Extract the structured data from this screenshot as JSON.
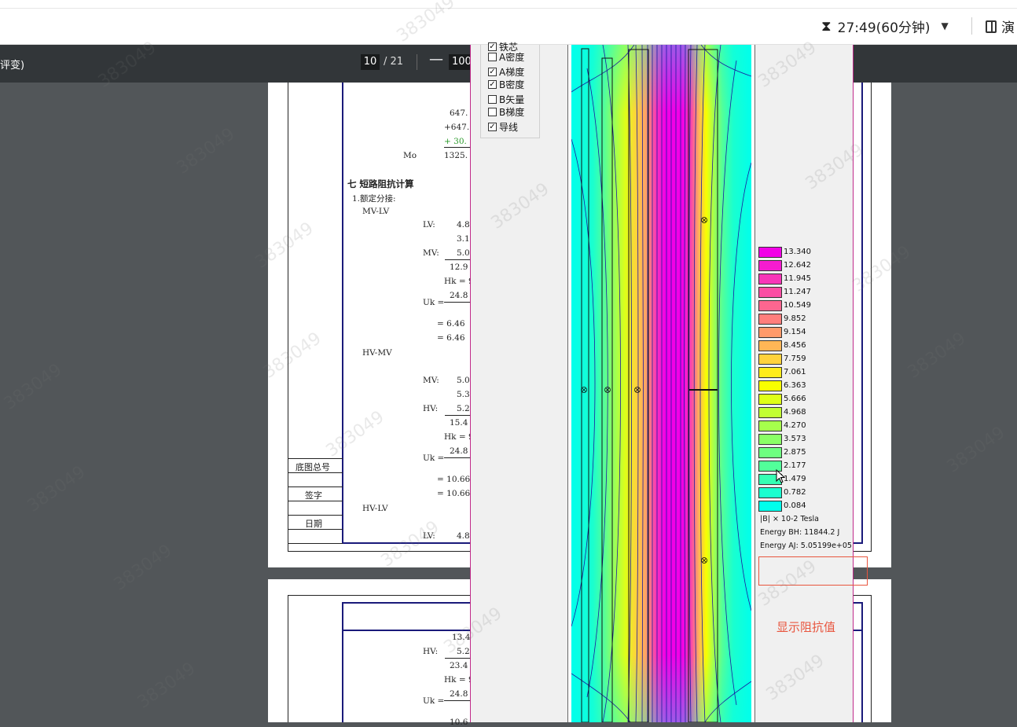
{
  "header": {
    "timer": "27:49(60分钟)",
    "present_label": "演"
  },
  "pdf_toolbar": {
    "doc_title_fragment": "评变)",
    "page_current": "10",
    "page_total": "/ 21",
    "zoom_minus": "—",
    "zoom_value": "100"
  },
  "page1": {
    "calc": {
      "l1": "647.",
      "l2": "+647.",
      "l3": "+ 30.",
      "mo_label": "Mo",
      "mo_value": "1325."
    },
    "section_title": "七 短路阻抗计算",
    "rated_tap": "1.额定分接:",
    "mvlv": {
      "heading": "MV-LV",
      "lv_label": "LV:",
      "lv_v1": "4.8",
      "lv_v2": "3.1",
      "mv_label": "MV:",
      "mv_v": "5.0",
      "sum": "12.9",
      "hk": "Hk = 9",
      "uk_label": "Uk =",
      "uk_num": "24.8",
      "r1": "= 6.46",
      "r2": "= 6.46"
    },
    "hvmv": {
      "heading": "HV-MV",
      "mv_label": "MV:",
      "mv_v1": "5.0",
      "mv_v2": "5.3",
      "hv_label": "HV:",
      "hv_v": "5.2",
      "sum": "15.4",
      "hk": "Hk = 9",
      "uk_label": "Uk =",
      "uk_num": "24.8",
      "r1": "= 10.66",
      "r2": "= 10.66"
    },
    "hvlv": {
      "heading": "HV-LV",
      "lv_label": "LV:",
      "lv_v": "4.8"
    },
    "title_block": {
      "base_no": "底图总号",
      "sign": "签字",
      "date": "日期"
    }
  },
  "page2": {
    "v1": "13.4",
    "hv_label": "HV:",
    "hv_v": "5.2",
    "sum": "23.4",
    "hk": "Hk = 9",
    "uk_label": "Uk =",
    "uk_num": "24.8",
    "tail": "10.6"
  },
  "sim": {
    "checkboxes": [
      {
        "label": "铁芯",
        "checked": true
      },
      {
        "label": "A密度",
        "checked": false
      },
      {
        "label": "A梯度",
        "checked": true
      },
      {
        "label": "B密度",
        "checked": true
      },
      {
        "label": "B矢量",
        "checked": false
      },
      {
        "label": "B梯度",
        "checked": false
      },
      {
        "label": "导线",
        "checked": true
      }
    ],
    "legend": [
      {
        "value": "13.340",
        "color": "#f200e6"
      },
      {
        "value": "12.642",
        "color": "#f51cd0"
      },
      {
        "value": "11.945",
        "color": "#f836b8"
      },
      {
        "value": "11.247",
        "color": "#fb4ea4"
      },
      {
        "value": "10.549",
        "color": "#fd6690"
      },
      {
        "value": "9.852",
        "color": "#ff7e7c"
      },
      {
        "value": "9.154",
        "color": "#ff9a6a"
      },
      {
        "value": "8.456",
        "color": "#ffb656"
      },
      {
        "value": "7.759",
        "color": "#ffd23c"
      },
      {
        "value": "7.061",
        "color": "#ffec1a"
      },
      {
        "value": "6.363",
        "color": "#f8ff00"
      },
      {
        "value": "5.666",
        "color": "#deff18"
      },
      {
        "value": "4.968",
        "color": "#c2ff32"
      },
      {
        "value": "4.270",
        "color": "#a6ff4c"
      },
      {
        "value": "3.573",
        "color": "#8aff66"
      },
      {
        "value": "2.875",
        "color": "#6eff80"
      },
      {
        "value": "2.177",
        "color": "#52ff9a"
      },
      {
        "value": "1.479",
        "color": "#36ffb4"
      },
      {
        "value": "0.782",
        "color": "#1affcf"
      },
      {
        "value": "0.084",
        "color": "#00ffec"
      }
    ],
    "unit": "|B| × 10-2 Tesla",
    "energy_bh": "Energy BH: 11844.2 J",
    "energy_aj": "Energy AJ: 5.05199e+05"
  },
  "annotation": {
    "label": "显示阻抗值",
    "color": "#e8553e"
  },
  "watermark": "383049"
}
